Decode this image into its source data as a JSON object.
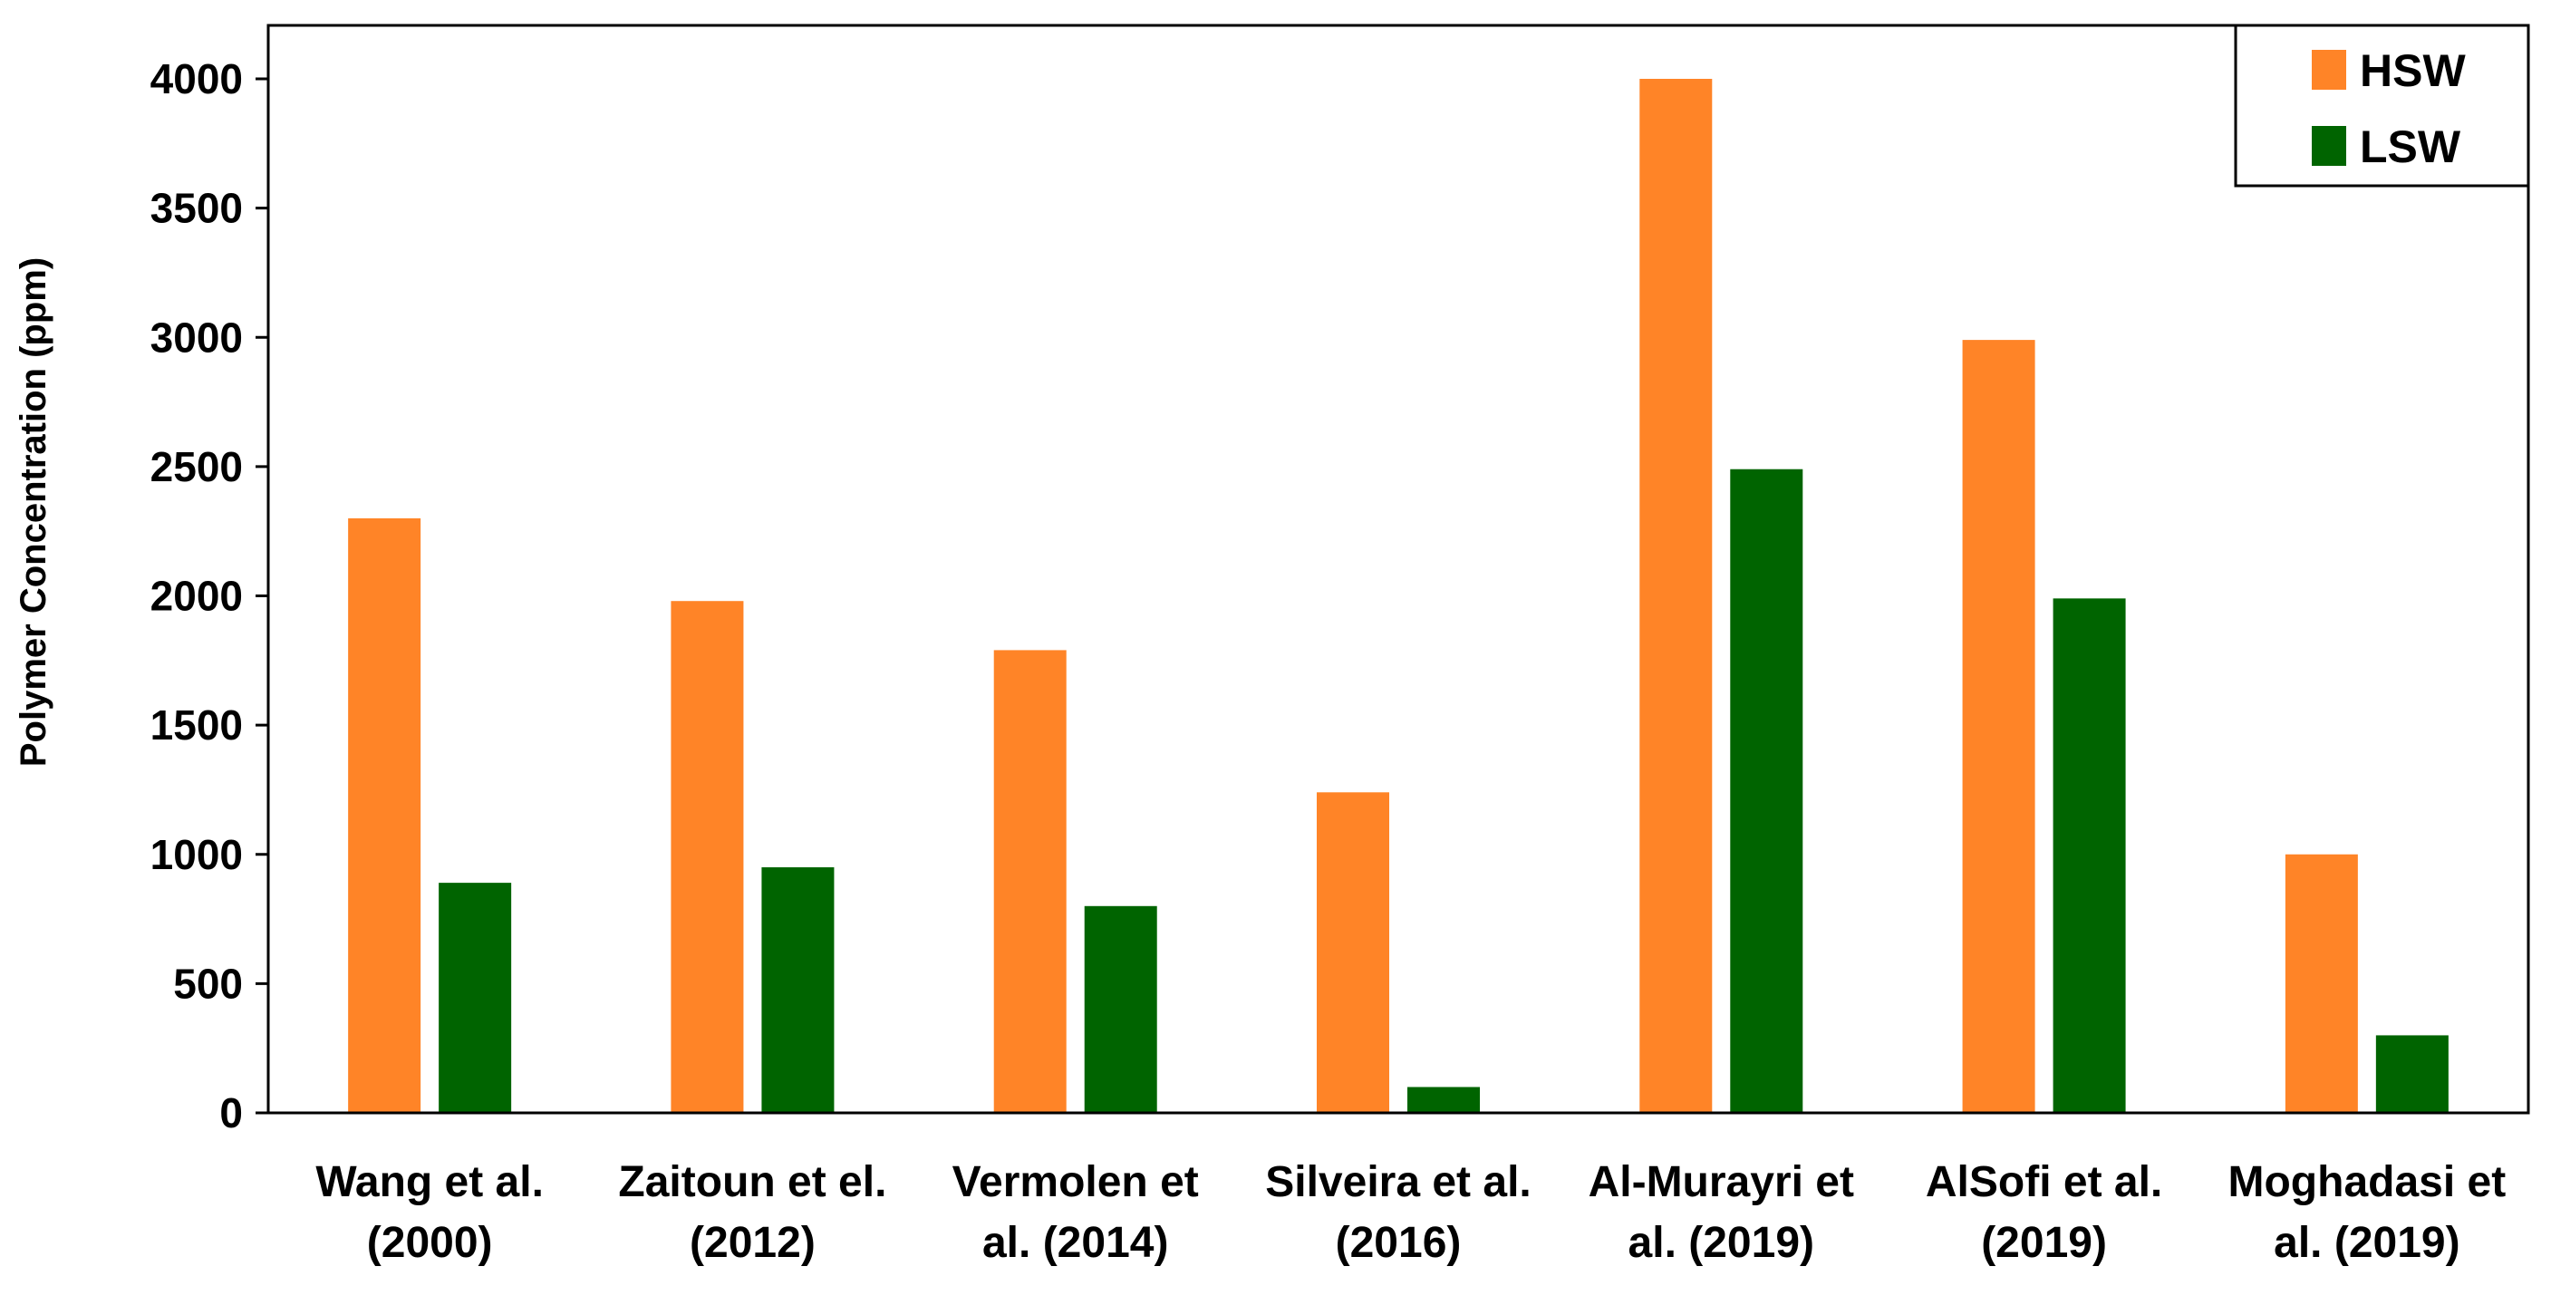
{
  "chart_data": {
    "type": "bar",
    "title": "",
    "xlabel": "",
    "ylabel": "Polymer Concentration (ppm)",
    "ylim": [
      0,
      4000
    ],
    "yticks": [
      "0",
      "500",
      "1000",
      "1500",
      "2000",
      "2500",
      "3000",
      "3500",
      "4000"
    ],
    "grid": false,
    "legend_position": "top-right",
    "categories": [
      [
        "Wang et al.",
        "(2000)"
      ],
      [
        "Zaitoun et el.",
        "(2012)"
      ],
      [
        "Vermolen et",
        "al. (2014)"
      ],
      [
        "Silveira et al.",
        "(2016)"
      ],
      [
        "Al-Murayri et",
        "al. (2019)"
      ],
      [
        "AlSofi et al.",
        "(2019)"
      ],
      [
        "Moghadasi et",
        "al. (2019)"
      ]
    ],
    "series": [
      {
        "name": "HSW",
        "color": "#FF8427",
        "values": [
          2300,
          1980,
          1790,
          1240,
          4000,
          2990,
          1000
        ]
      },
      {
        "name": "LSW",
        "color": "#006400",
        "values": [
          890,
          950,
          800,
          100,
          2490,
          1990,
          300
        ]
      }
    ]
  }
}
